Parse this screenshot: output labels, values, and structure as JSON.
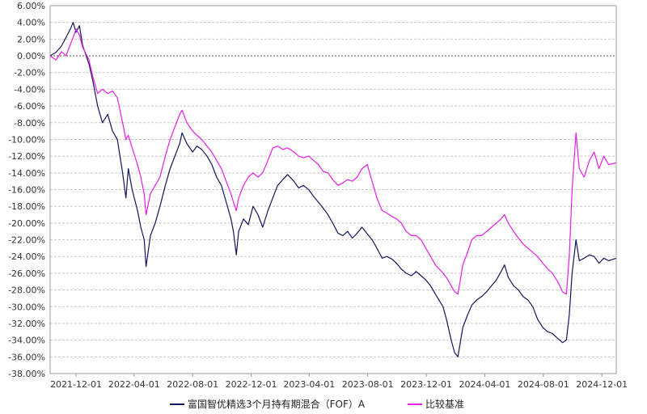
{
  "chart_data": {
    "type": "line",
    "title": "",
    "xlabel": "",
    "ylabel": "",
    "y_unit": "percent",
    "ylim": [
      -38,
      6
    ],
    "y_tick_step": 2,
    "x_domain": [
      "2021-10-08",
      "2024-12-31"
    ],
    "x_ticks": [
      "2021-12-01",
      "2022-04-01",
      "2022-08-01",
      "2022-12-01",
      "2023-04-01",
      "2023-08-01",
      "2023-12-01",
      "2024-04-01",
      "2024-08-01",
      "2024-12-01"
    ],
    "grid": true,
    "zero_line": true,
    "legend_position": "bottom",
    "series": [
      {
        "name": "富国智优精选3个月持有期混合（FOF）A",
        "color": "#14145a",
        "points": [
          [
            "2021-10-08",
            0.0
          ],
          [
            "2021-10-20",
            0.4
          ],
          [
            "2021-11-01",
            1.2
          ],
          [
            "2021-11-10",
            2.2
          ],
          [
            "2021-11-20",
            3.3
          ],
          [
            "2021-11-25",
            4.0
          ],
          [
            "2021-12-01",
            2.8
          ],
          [
            "2021-12-08",
            3.6
          ],
          [
            "2021-12-15",
            1.2
          ],
          [
            "2021-12-28",
            -1.0
          ],
          [
            "2022-01-05",
            -3.0
          ],
          [
            "2022-01-15",
            -6.0
          ],
          [
            "2022-01-25",
            -8.0
          ],
          [
            "2022-02-05",
            -7.0
          ],
          [
            "2022-02-15",
            -9.0
          ],
          [
            "2022-02-25",
            -10.0
          ],
          [
            "2022-03-08",
            -14.0
          ],
          [
            "2022-03-15",
            -17.0
          ],
          [
            "2022-03-20",
            -13.5
          ],
          [
            "2022-03-28",
            -16.0
          ],
          [
            "2022-04-08",
            -18.5
          ],
          [
            "2022-04-15",
            -20.5
          ],
          [
            "2022-04-22",
            -22.0
          ],
          [
            "2022-04-26",
            -25.2
          ],
          [
            "2022-05-05",
            -21.5
          ],
          [
            "2022-05-15",
            -20.0
          ],
          [
            "2022-05-25",
            -18.0
          ],
          [
            "2022-06-05",
            -15.5
          ],
          [
            "2022-06-15",
            -13.5
          ],
          [
            "2022-06-25",
            -12.0
          ],
          [
            "2022-07-05",
            -10.5
          ],
          [
            "2022-07-10",
            -9.2
          ],
          [
            "2022-07-20",
            -10.5
          ],
          [
            "2022-08-01",
            -11.5
          ],
          [
            "2022-08-10",
            -10.8
          ],
          [
            "2022-08-20",
            -11.2
          ],
          [
            "2022-08-31",
            -12.0
          ],
          [
            "2022-09-10",
            -13.0
          ],
          [
            "2022-09-20",
            -14.5
          ],
          [
            "2022-09-30",
            -15.5
          ],
          [
            "2022-10-10",
            -17.5
          ],
          [
            "2022-10-20",
            -19.5
          ],
          [
            "2022-10-25",
            -21.0
          ],
          [
            "2022-10-31",
            -23.8
          ],
          [
            "2022-11-05",
            -21.0
          ],
          [
            "2022-11-15",
            -19.5
          ],
          [
            "2022-11-25",
            -20.2
          ],
          [
            "2022-12-05",
            -18.0
          ],
          [
            "2022-12-15",
            -19.0
          ],
          [
            "2022-12-25",
            -20.5
          ],
          [
            "2023-01-05",
            -18.5
          ],
          [
            "2023-01-15",
            -17.0
          ],
          [
            "2023-01-25",
            -15.5
          ],
          [
            "2023-02-05",
            -14.8
          ],
          [
            "2023-02-15",
            -14.2
          ],
          [
            "2023-02-28",
            -15.0
          ],
          [
            "2023-03-10",
            -15.8
          ],
          [
            "2023-03-20",
            -15.5
          ],
          [
            "2023-03-31",
            -16.0
          ],
          [
            "2023-04-10",
            -16.8
          ],
          [
            "2023-04-20",
            -17.5
          ],
          [
            "2023-04-30",
            -18.2
          ],
          [
            "2023-05-10",
            -19.0
          ],
          [
            "2023-05-20",
            -20.0
          ],
          [
            "2023-05-31",
            -21.2
          ],
          [
            "2023-06-10",
            -21.5
          ],
          [
            "2023-06-20",
            -21.0
          ],
          [
            "2023-06-30",
            -21.8
          ],
          [
            "2023-07-10",
            -21.2
          ],
          [
            "2023-07-20",
            -20.5
          ],
          [
            "2023-07-31",
            -21.3
          ],
          [
            "2023-08-10",
            -22.0
          ],
          [
            "2023-08-20",
            -23.0
          ],
          [
            "2023-08-31",
            -24.2
          ],
          [
            "2023-09-10",
            -24.0
          ],
          [
            "2023-09-20",
            -24.3
          ],
          [
            "2023-09-30",
            -24.8
          ],
          [
            "2023-10-10",
            -25.5
          ],
          [
            "2023-10-20",
            -26.0
          ],
          [
            "2023-10-31",
            -26.3
          ],
          [
            "2023-11-10",
            -25.8
          ],
          [
            "2023-11-20",
            -26.3
          ],
          [
            "2023-11-30",
            -26.8
          ],
          [
            "2023-12-10",
            -27.5
          ],
          [
            "2023-12-20",
            -28.5
          ],
          [
            "2024-01-05",
            -30.0
          ],
          [
            "2024-01-12",
            -31.5
          ],
          [
            "2024-01-22",
            -34.0
          ],
          [
            "2024-01-29",
            -35.5
          ],
          [
            "2024-02-05",
            -36.0
          ],
          [
            "2024-02-15",
            -32.5
          ],
          [
            "2024-02-25",
            -31.0
          ],
          [
            "2024-03-05",
            -29.8
          ],
          [
            "2024-03-15",
            -29.2
          ],
          [
            "2024-03-25",
            -28.8
          ],
          [
            "2024-04-05",
            -28.2
          ],
          [
            "2024-04-15",
            -27.5
          ],
          [
            "2024-04-25",
            -26.8
          ],
          [
            "2024-05-05",
            -25.8
          ],
          [
            "2024-05-12",
            -25.0
          ],
          [
            "2024-05-20",
            -26.5
          ],
          [
            "2024-05-31",
            -27.5
          ],
          [
            "2024-06-10",
            -28.0
          ],
          [
            "2024-06-20",
            -28.8
          ],
          [
            "2024-06-30",
            -29.2
          ],
          [
            "2024-07-10",
            -30.0
          ],
          [
            "2024-07-20",
            -31.5
          ],
          [
            "2024-07-31",
            -32.5
          ],
          [
            "2024-08-10",
            -33.0
          ],
          [
            "2024-08-20",
            -33.2
          ],
          [
            "2024-08-31",
            -33.8
          ],
          [
            "2024-09-10",
            -34.3
          ],
          [
            "2024-09-18",
            -34.0
          ],
          [
            "2024-09-24",
            -31.0
          ],
          [
            "2024-09-30",
            -26.0
          ],
          [
            "2024-10-08",
            -22.0
          ],
          [
            "2024-10-15",
            -24.5
          ],
          [
            "2024-10-25",
            -24.2
          ],
          [
            "2024-11-05",
            -23.8
          ],
          [
            "2024-11-15",
            -24.0
          ],
          [
            "2024-11-25",
            -24.8
          ],
          [
            "2024-12-05",
            -24.2
          ],
          [
            "2024-12-15",
            -24.5
          ],
          [
            "2024-12-31",
            -24.2
          ]
        ]
      },
      {
        "name": "比较基准",
        "color": "#e61ee6",
        "points": [
          [
            "2021-10-08",
            0.0
          ],
          [
            "2021-10-20",
            -0.5
          ],
          [
            "2021-11-01",
            0.5
          ],
          [
            "2021-11-10",
            0.0
          ],
          [
            "2021-11-20",
            1.5
          ],
          [
            "2021-11-25",
            2.2
          ],
          [
            "2021-12-01",
            3.2
          ],
          [
            "2021-12-08",
            2.5
          ],
          [
            "2021-12-15",
            1.0
          ],
          [
            "2021-12-28",
            -0.5
          ],
          [
            "2022-01-05",
            -2.5
          ],
          [
            "2022-01-15",
            -4.5
          ],
          [
            "2022-01-25",
            -4.0
          ],
          [
            "2022-02-05",
            -4.5
          ],
          [
            "2022-02-15",
            -4.2
          ],
          [
            "2022-02-25",
            -5.0
          ],
          [
            "2022-03-08",
            -8.0
          ],
          [
            "2022-03-15",
            -10.0
          ],
          [
            "2022-03-20",
            -9.5
          ],
          [
            "2022-03-28",
            -11.0
          ],
          [
            "2022-04-08",
            -13.0
          ],
          [
            "2022-04-15",
            -14.5
          ],
          [
            "2022-04-22",
            -16.5
          ],
          [
            "2022-04-26",
            -19.0
          ],
          [
            "2022-05-05",
            -16.5
          ],
          [
            "2022-05-15",
            -15.5
          ],
          [
            "2022-05-25",
            -14.5
          ],
          [
            "2022-06-05",
            -12.0
          ],
          [
            "2022-06-15",
            -10.0
          ],
          [
            "2022-06-25",
            -8.5
          ],
          [
            "2022-07-05",
            -7.0
          ],
          [
            "2022-07-10",
            -6.5
          ],
          [
            "2022-07-20",
            -8.0
          ],
          [
            "2022-08-01",
            -9.0
          ],
          [
            "2022-08-10",
            -9.5
          ],
          [
            "2022-08-20",
            -10.0
          ],
          [
            "2022-08-31",
            -10.8
          ],
          [
            "2022-09-10",
            -11.5
          ],
          [
            "2022-09-20",
            -12.5
          ],
          [
            "2022-09-30",
            -13.5
          ],
          [
            "2022-10-10",
            -15.0
          ],
          [
            "2022-10-20",
            -16.5
          ],
          [
            "2022-10-25",
            -17.5
          ],
          [
            "2022-10-31",
            -18.5
          ],
          [
            "2022-11-05",
            -17.0
          ],
          [
            "2022-11-15",
            -15.5
          ],
          [
            "2022-11-25",
            -14.5
          ],
          [
            "2022-12-05",
            -14.0
          ],
          [
            "2022-12-15",
            -14.5
          ],
          [
            "2022-12-25",
            -14.0
          ],
          [
            "2023-01-05",
            -12.5
          ],
          [
            "2023-01-15",
            -11.0
          ],
          [
            "2023-01-25",
            -10.8
          ],
          [
            "2023-02-05",
            -11.2
          ],
          [
            "2023-02-15",
            -11.0
          ],
          [
            "2023-02-28",
            -11.5
          ],
          [
            "2023-03-10",
            -12.0
          ],
          [
            "2023-03-20",
            -12.2
          ],
          [
            "2023-03-31",
            -12.0
          ],
          [
            "2023-04-10",
            -12.5
          ],
          [
            "2023-04-20",
            -13.0
          ],
          [
            "2023-04-30",
            -13.8
          ],
          [
            "2023-05-10",
            -14.0
          ],
          [
            "2023-05-20",
            -14.8
          ],
          [
            "2023-05-31",
            -15.5
          ],
          [
            "2023-06-10",
            -15.2
          ],
          [
            "2023-06-20",
            -14.8
          ],
          [
            "2023-06-30",
            -15.0
          ],
          [
            "2023-07-10",
            -14.5
          ],
          [
            "2023-07-20",
            -13.5
          ],
          [
            "2023-07-31",
            -13.0
          ],
          [
            "2023-08-10",
            -15.0
          ],
          [
            "2023-08-20",
            -17.0
          ],
          [
            "2023-08-31",
            -18.5
          ],
          [
            "2023-09-10",
            -18.8
          ],
          [
            "2023-09-20",
            -19.2
          ],
          [
            "2023-09-30",
            -19.5
          ],
          [
            "2023-10-10",
            -20.0
          ],
          [
            "2023-10-20",
            -21.0
          ],
          [
            "2023-10-31",
            -21.5
          ],
          [
            "2023-11-10",
            -21.5
          ],
          [
            "2023-11-20",
            -22.0
          ],
          [
            "2023-11-30",
            -23.0
          ],
          [
            "2023-12-10",
            -24.0
          ],
          [
            "2023-12-20",
            -25.0
          ],
          [
            "2024-01-05",
            -26.0
          ],
          [
            "2024-01-12",
            -26.5
          ],
          [
            "2024-01-22",
            -27.5
          ],
          [
            "2024-01-29",
            -28.2
          ],
          [
            "2024-02-05",
            -28.5
          ],
          [
            "2024-02-15",
            -25.0
          ],
          [
            "2024-02-25",
            -23.5
          ],
          [
            "2024-03-05",
            -22.0
          ],
          [
            "2024-03-15",
            -21.5
          ],
          [
            "2024-03-25",
            -21.5
          ],
          [
            "2024-04-05",
            -21.0
          ],
          [
            "2024-04-15",
            -20.5
          ],
          [
            "2024-04-25",
            -20.0
          ],
          [
            "2024-05-05",
            -19.5
          ],
          [
            "2024-05-12",
            -19.0
          ],
          [
            "2024-05-20",
            -20.0
          ],
          [
            "2024-05-31",
            -21.0
          ],
          [
            "2024-06-10",
            -21.8
          ],
          [
            "2024-06-20",
            -22.5
          ],
          [
            "2024-06-30",
            -23.0
          ],
          [
            "2024-07-10",
            -23.5
          ],
          [
            "2024-07-20",
            -24.0
          ],
          [
            "2024-07-31",
            -24.8
          ],
          [
            "2024-08-10",
            -25.5
          ],
          [
            "2024-08-20",
            -26.0
          ],
          [
            "2024-08-31",
            -27.0
          ],
          [
            "2024-09-10",
            -28.2
          ],
          [
            "2024-09-18",
            -28.5
          ],
          [
            "2024-09-24",
            -24.0
          ],
          [
            "2024-09-30",
            -16.0
          ],
          [
            "2024-10-08",
            -9.2
          ],
          [
            "2024-10-15",
            -13.5
          ],
          [
            "2024-10-25",
            -14.5
          ],
          [
            "2024-11-05",
            -12.5
          ],
          [
            "2024-11-15",
            -11.5
          ],
          [
            "2024-11-25",
            -13.5
          ],
          [
            "2024-12-05",
            -12.0
          ],
          [
            "2024-12-15",
            -13.0
          ],
          [
            "2024-12-31",
            -12.8
          ]
        ]
      }
    ]
  }
}
